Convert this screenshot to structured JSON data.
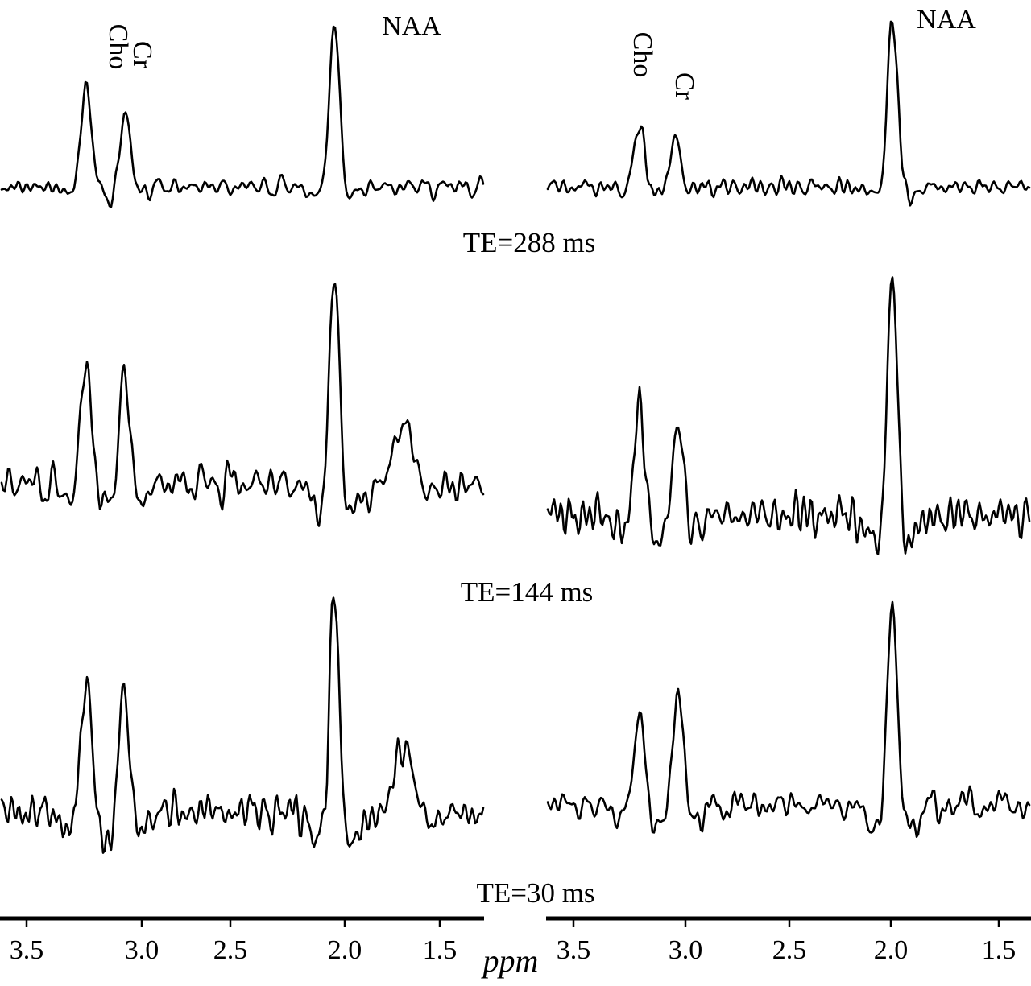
{
  "chart_data": {
    "type": "line",
    "x_unit_label": "ppm",
    "xlim": [
      3.7,
      1.33
    ],
    "tick_values": [
      3.5,
      3.0,
      2.5,
      2.0,
      1.5
    ],
    "tick_labels": [
      "3.5",
      "3.0",
      "2.5",
      "2.0",
      "1.5"
    ],
    "peak_labels": {
      "cho": "Cho",
      "cr": "Cr",
      "naa": "NAA"
    },
    "te_labels": [
      "TE=288 ms",
      "TE=144 ms",
      "TE=30 ms"
    ],
    "panels": [
      {
        "panel": "left",
        "series": [
          {
            "name": "TE=288 ms",
            "peaks": [
              {
                "ppm": 3.21,
                "amp": 0.58,
                "w": 0.028
              },
              {
                "ppm": 3.02,
                "amp": 0.46,
                "w": 0.024
              },
              {
                "ppm": 2.01,
                "amp": 1.0,
                "w": 0.025
              }
            ]
          },
          {
            "name": "TE=144 ms",
            "peaks": [
              {
                "ppm": 3.21,
                "amp": 0.55,
                "w": 0.03
              },
              {
                "ppm": 3.03,
                "amp": 0.55,
                "w": 0.026
              },
              {
                "ppm": 2.01,
                "amp": 1.0,
                "w": 0.025
              },
              {
                "ppm": 1.68,
                "amp": 0.28,
                "w": 0.05
              }
            ]
          },
          {
            "name": "TE=30 ms",
            "peaks": [
              {
                "ppm": 3.21,
                "amp": 0.58,
                "w": 0.03
              },
              {
                "ppm": 3.03,
                "amp": 0.58,
                "w": 0.026
              },
              {
                "ppm": 2.01,
                "amp": 1.0,
                "w": 0.025
              },
              {
                "ppm": 1.68,
                "amp": 0.3,
                "w": 0.05
              }
            ]
          }
        ]
      },
      {
        "panel": "right",
        "series": [
          {
            "name": "TE=288 ms",
            "peaks": [
              {
                "ppm": 3.19,
                "amp": 0.36,
                "w": 0.026
              },
              {
                "ppm": 3.02,
                "amp": 0.3,
                "w": 0.024
              },
              {
                "ppm": 2.0,
                "amp": 1.0,
                "w": 0.025
              }
            ]
          },
          {
            "name": "TE=144 ms",
            "peaks": [
              {
                "ppm": 3.19,
                "amp": 0.45,
                "w": 0.026
              },
              {
                "ppm": 3.01,
                "amp": 0.38,
                "w": 0.026
              },
              {
                "ppm": 2.0,
                "amp": 1.0,
                "w": 0.025
              }
            ]
          },
          {
            "name": "TE=30 ms",
            "peaks": [
              {
                "ppm": 3.19,
                "amp": 0.45,
                "w": 0.028
              },
              {
                "ppm": 3.01,
                "amp": 0.6,
                "w": 0.026
              },
              {
                "ppm": 2.0,
                "amp": 1.0,
                "w": 0.025
              }
            ]
          }
        ]
      }
    ]
  }
}
